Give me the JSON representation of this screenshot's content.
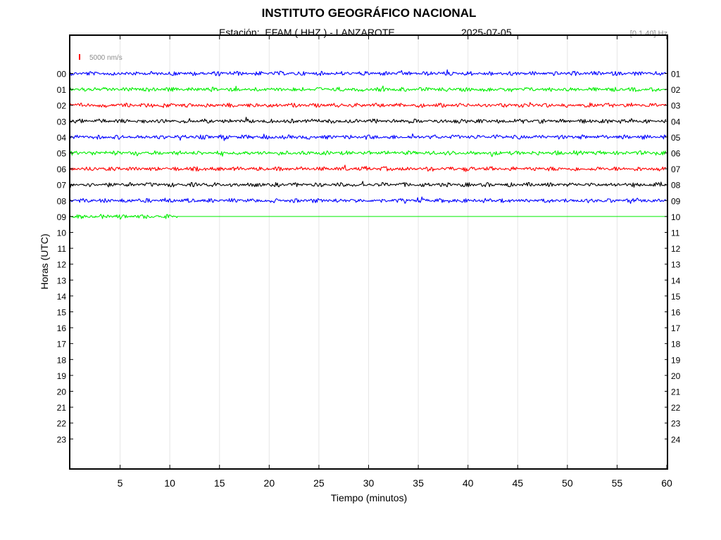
{
  "header": {
    "title": "INSTITUTO GEOGRÁFICO NACIONAL",
    "station_line": "Estación:  EFAM ( HHZ ) - LANZAROTE",
    "date": "2025-07-05",
    "filter": "[0.1 40] Hz"
  },
  "scale_label": "5000 nm/s",
  "colors": {
    "cycle": [
      "#0000ff",
      "#00ee00",
      "#ff0000",
      "#000000"
    ],
    "scale_bar": "#ff0000",
    "grid": "#e6e6e6"
  },
  "chart_data": {
    "type": "line",
    "title": "INSTITUTO GEOGRÁFICO NACIONAL",
    "xlabel": "Tiempo (minutos)",
    "ylabel": "Horas (UTC)",
    "xlim": [
      0,
      60
    ],
    "xticks": [
      "5",
      "10",
      "15",
      "20",
      "25",
      "30",
      "35",
      "40",
      "45",
      "50",
      "55",
      "60"
    ],
    "left_ticks": [
      "00",
      "01",
      "02",
      "03",
      "04",
      "05",
      "06",
      "07",
      "08",
      "09",
      "10",
      "11",
      "12",
      "13",
      "14",
      "15",
      "16",
      "17",
      "18",
      "19",
      "20",
      "21",
      "22",
      "23"
    ],
    "right_ticks": [
      "01",
      "02",
      "03",
      "04",
      "05",
      "06",
      "07",
      "08",
      "09",
      "10",
      "11",
      "12",
      "13",
      "14",
      "15",
      "16",
      "17",
      "18",
      "19",
      "20",
      "21",
      "22",
      "23",
      "24"
    ],
    "grid": "vertical",
    "series": [
      {
        "hour": "00",
        "color": "#0000ff",
        "data_until_min": 60,
        "flat_after": false
      },
      {
        "hour": "01",
        "color": "#00ee00",
        "data_until_min": 60,
        "flat_after": false
      },
      {
        "hour": "02",
        "color": "#ff0000",
        "data_until_min": 60,
        "flat_after": false
      },
      {
        "hour": "03",
        "color": "#000000",
        "data_until_min": 60,
        "flat_after": false
      },
      {
        "hour": "04",
        "color": "#0000ff",
        "data_until_min": 60,
        "flat_after": false
      },
      {
        "hour": "05",
        "color": "#00ee00",
        "data_until_min": 60,
        "flat_after": false
      },
      {
        "hour": "06",
        "color": "#ff0000",
        "data_until_min": 60,
        "flat_after": false
      },
      {
        "hour": "07",
        "color": "#000000",
        "data_until_min": 60,
        "flat_after": false
      },
      {
        "hour": "08",
        "color": "#0000ff",
        "data_until_min": 60,
        "flat_after": false
      },
      {
        "hour": "09",
        "color": "#00ee00",
        "data_until_min": 10.8,
        "flat_after": true
      }
    ]
  }
}
